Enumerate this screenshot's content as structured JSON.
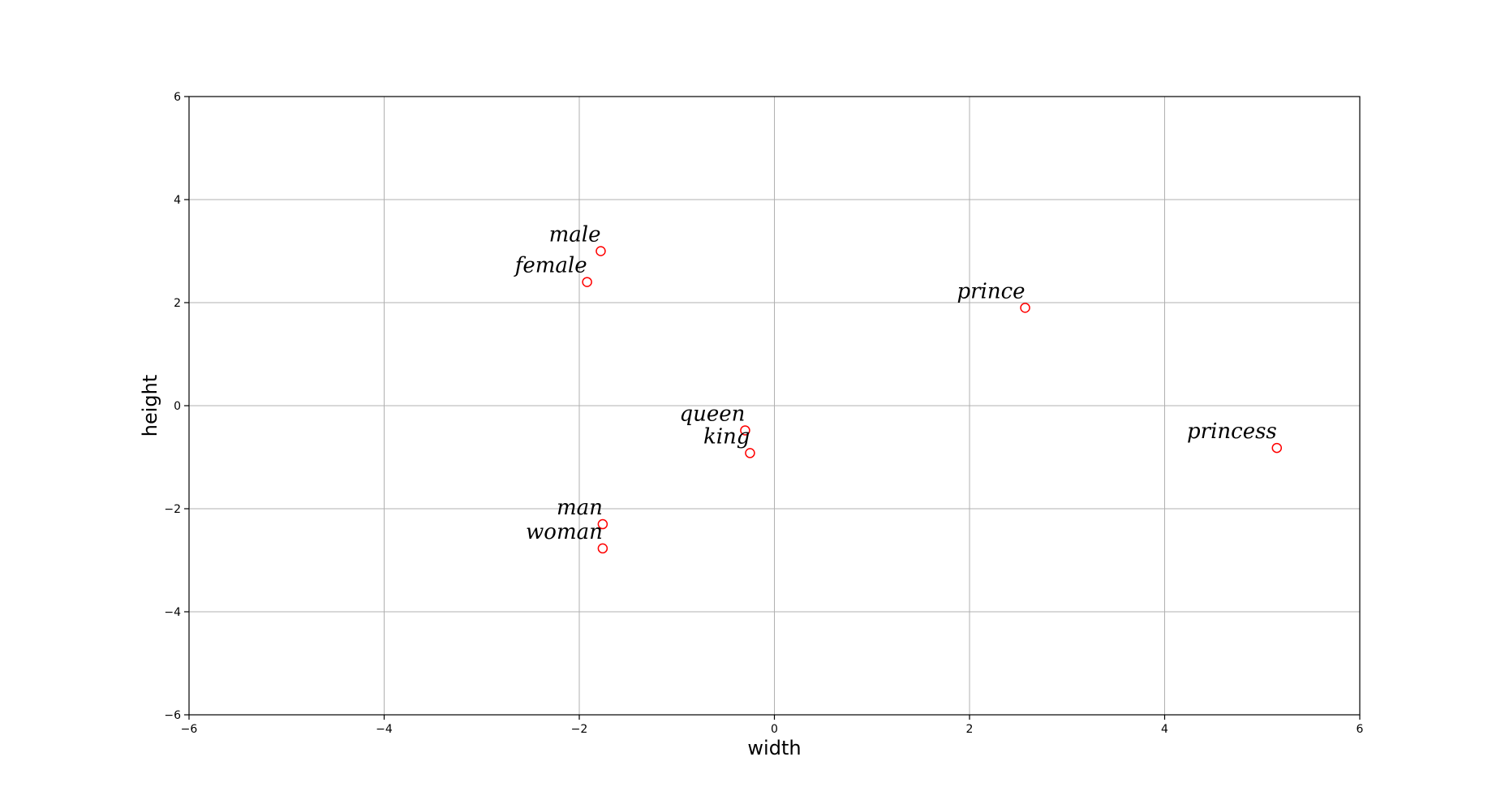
{
  "chart_data": {
    "type": "scatter",
    "title": "",
    "xlabel": "width",
    "ylabel": "height",
    "xlim": [
      -6,
      6
    ],
    "ylim": [
      -6,
      6
    ],
    "xticks": [
      -6,
      -4,
      -2,
      0,
      2,
      4,
      6
    ],
    "yticks": [
      -6,
      -4,
      -2,
      0,
      2,
      4,
      6
    ],
    "grid": true,
    "marker_color": "#ff0000",
    "points": [
      {
        "label": "male",
        "x": -1.78,
        "y": 3.0
      },
      {
        "label": "female",
        "x": -1.92,
        "y": 2.4
      },
      {
        "label": "prince",
        "x": 2.57,
        "y": 1.9
      },
      {
        "label": "queen",
        "x": -0.3,
        "y": -0.48
      },
      {
        "label": "king",
        "x": -0.25,
        "y": -0.92
      },
      {
        "label": "princess",
        "x": 5.15,
        "y": -0.82
      },
      {
        "label": "man",
        "x": -1.76,
        "y": -2.3
      },
      {
        "label": "woman",
        "x": -1.76,
        "y": -2.77
      }
    ]
  }
}
